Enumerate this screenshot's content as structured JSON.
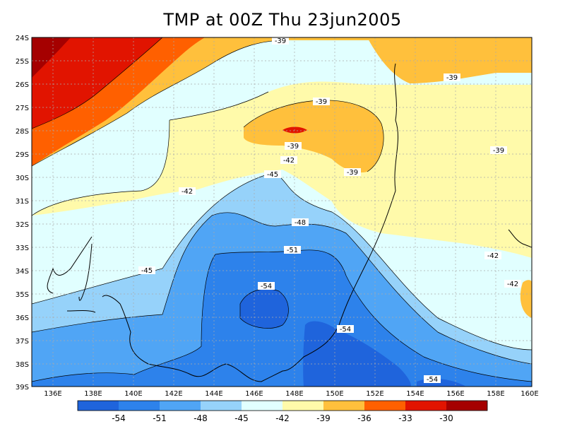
{
  "title": "TMP at 00Z Thu 23jun2005",
  "axes": {
    "lat_labels": [
      "24S",
      "25S",
      "26S",
      "27S",
      "28S",
      "29S",
      "30S",
      "31S",
      "32S",
      "33S",
      "34S",
      "35S",
      "36S",
      "37S",
      "38S",
      "39S"
    ],
    "lon_labels": [
      "136E",
      "138E",
      "140E",
      "142E",
      "144E",
      "146E",
      "148E",
      "150E",
      "152E",
      "154E",
      "156E",
      "158E",
      "160E"
    ]
  },
  "contour_labels": [
    {
      "text": "-39"
    },
    {
      "text": "-39"
    },
    {
      "text": "-39"
    },
    {
      "text": "-39"
    },
    {
      "text": "-39"
    },
    {
      "text": "-39"
    },
    {
      "text": "-42"
    },
    {
      "text": "-42"
    },
    {
      "text": "-42"
    },
    {
      "text": "-42"
    },
    {
      "text": "-45"
    },
    {
      "text": "-45"
    },
    {
      "text": "-48"
    },
    {
      "text": "-51"
    },
    {
      "text": "-54"
    },
    {
      "text": "-54"
    },
    {
      "text": "-54"
    }
  ],
  "colorbar": {
    "colors": [
      "#1f64dc",
      "#2d82eb",
      "#50a5f5",
      "#96d2fa",
      "#e1ffff",
      "#fffaaa",
      "#ffc03c",
      "#ff6000",
      "#e11400",
      "#a50000"
    ],
    "labels": [
      "-54",
      "-51",
      "-48",
      "-45",
      "-42",
      "-39",
      "-36",
      "-33",
      "-30"
    ]
  }
}
